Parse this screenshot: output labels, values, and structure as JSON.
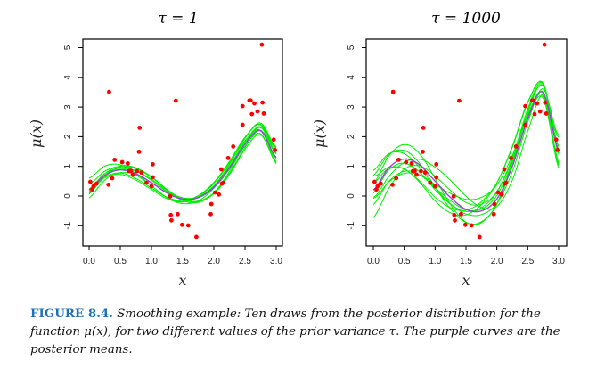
{
  "figure": {
    "label": "FIGURE 8.4.",
    "caption": " Smoothing example: Ten draws from the posterior distribution for the function μ(x), for two different values of the prior variance τ. The purple curves are the posterior means."
  },
  "colors": {
    "draws": "#00ee00",
    "mean": "#a040e0",
    "points": "#ff0000",
    "accent": "#1f6fb2"
  },
  "chart_data": [
    {
      "type": "line",
      "title": "τ = 1",
      "xlabel": "x",
      "ylabel": "μ(x)",
      "xlim": [
        0,
        3
      ],
      "ylim": [
        -1.7,
        5.3
      ],
      "xticks": [
        "0.0",
        "0.5",
        "1.0",
        "1.5",
        "2.0",
        "2.5",
        "3.0"
      ],
      "yticks": [
        "-1",
        "0",
        "1",
        "2",
        "3",
        "4",
        "5"
      ],
      "mean_curve": {
        "x": [
          0,
          0.25,
          0.5,
          0.75,
          1.0,
          1.25,
          1.5,
          1.75,
          2.0,
          2.25,
          2.5,
          2.75,
          3.0
        ],
        "y": [
          0.2,
          0.7,
          0.88,
          0.75,
          0.45,
          0.1,
          -0.1,
          -0.05,
          0.3,
          0.95,
          1.75,
          2.2,
          1.3
        ]
      },
      "n_draws": 10
    },
    {
      "type": "line",
      "title": "τ = 1000",
      "xlabel": "x",
      "ylabel": "μ(x)",
      "xlim": [
        0,
        3
      ],
      "ylim": [
        -1.7,
        5.3
      ],
      "xticks": [
        "0.0",
        "0.5",
        "1.0",
        "1.5",
        "2.0",
        "2.5",
        "3.0"
      ],
      "yticks": [
        "-1",
        "0",
        "1",
        "2",
        "3",
        "4",
        "5"
      ],
      "mean_curve": {
        "x": [
          0,
          0.25,
          0.5,
          0.75,
          1.0,
          1.25,
          1.5,
          1.75,
          2.0,
          2.25,
          2.5,
          2.75,
          3.0
        ],
        "y": [
          0.2,
          0.95,
          1.25,
          1.05,
          0.5,
          -0.05,
          -0.45,
          -0.5,
          -0.1,
          1.0,
          2.6,
          3.5,
          1.5
        ]
      },
      "n_draws": 10
    }
  ],
  "points": {
    "x": [
      0.02,
      0.05,
      0.07,
      0.12,
      0.31,
      0.37,
      0.41,
      0.53,
      0.62,
      0.64,
      0.67,
      0.7,
      0.77,
      0.8,
      0.81,
      0.84,
      0.92,
      1.0,
      1.02,
      1.02,
      1.3,
      1.31,
      1.32,
      1.39,
      1.42,
      1.49,
      1.59,
      1.72,
      1.95,
      1.96,
      2.02,
      2.08,
      2.12,
      2.13,
      2.15,
      2.23,
      2.31,
      2.46,
      2.46,
      2.57,
      2.59,
      2.61,
      2.65,
      2.7,
      2.77,
      2.78,
      2.8,
      2.96,
      2.98,
      0.32
    ],
    "y": [
      0.48,
      0.22,
      0.33,
      0.42,
      0.38,
      0.6,
      1.22,
      1.14,
      1.1,
      0.84,
      0.85,
      0.72,
      0.84,
      1.49,
      2.3,
      0.79,
      0.45,
      0.33,
      0.63,
      1.07,
      -0.01,
      -0.64,
      -0.82,
      3.21,
      -0.61,
      -0.97,
      -0.99,
      -1.38,
      -0.61,
      -0.27,
      0.12,
      0.05,
      0.9,
      0.42,
      0.45,
      1.28,
      1.67,
      2.4,
      3.03,
      3.22,
      3.22,
      2.76,
      3.12,
      2.85,
      5.1,
      3.15,
      2.78,
      1.9,
      1.55,
      3.51
    ]
  }
}
